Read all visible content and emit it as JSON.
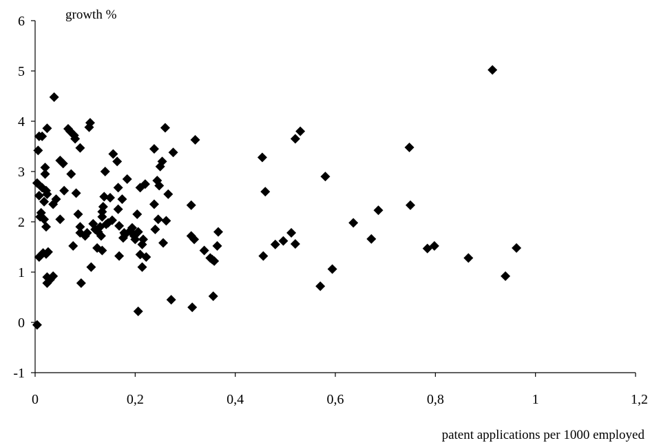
{
  "chart_data": {
    "type": "scatter",
    "ylabel": "growth %",
    "xlabel": "patent applications per 1000 employed",
    "xlim": [
      0,
      1.2
    ],
    "ylim": [
      -1,
      6
    ],
    "x_ticks": [
      "0",
      "0,2",
      "0,4",
      "0,6",
      "0,8",
      "1",
      "1,2"
    ],
    "y_ticks": [
      "-1",
      "0",
      "1",
      "2",
      "3",
      "4",
      "5",
      "6"
    ],
    "grid": false,
    "legend": "none",
    "marker": "diamond",
    "marker_color": "#000000",
    "points": [
      [
        0.004,
        -0.05
      ],
      [
        0.004,
        2.77
      ],
      [
        0.006,
        3.42
      ],
      [
        0.008,
        3.7
      ],
      [
        0.008,
        2.52
      ],
      [
        0.008,
        1.3
      ],
      [
        0.01,
        2.1
      ],
      [
        0.012,
        2.18
      ],
      [
        0.014,
        3.7
      ],
      [
        0.014,
        2.68
      ],
      [
        0.016,
        1.38
      ],
      [
        0.018,
        2.05
      ],
      [
        0.018,
        2.4
      ],
      [
        0.02,
        3.08
      ],
      [
        0.02,
        2.95
      ],
      [
        0.022,
        2.62
      ],
      [
        0.022,
        1.9
      ],
      [
        0.022,
        1.36
      ],
      [
        0.024,
        3.86
      ],
      [
        0.024,
        2.55
      ],
      [
        0.024,
        0.9
      ],
      [
        0.024,
        0.78
      ],
      [
        0.026,
        1.4
      ],
      [
        0.03,
        0.85
      ],
      [
        0.036,
        0.92
      ],
      [
        0.036,
        2.35
      ],
      [
        0.038,
        4.48
      ],
      [
        0.042,
        2.45
      ],
      [
        0.05,
        2.05
      ],
      [
        0.05,
        3.22
      ],
      [
        0.056,
        3.16
      ],
      [
        0.058,
        2.62
      ],
      [
        0.066,
        3.85
      ],
      [
        0.07,
        3.8
      ],
      [
        0.072,
        2.95
      ],
      [
        0.076,
        1.52
      ],
      [
        0.078,
        3.72
      ],
      [
        0.08,
        3.65
      ],
      [
        0.082,
        2.57
      ],
      [
        0.086,
        2.15
      ],
      [
        0.09,
        3.47
      ],
      [
        0.09,
        1.9
      ],
      [
        0.09,
        1.78
      ],
      [
        0.092,
        0.78
      ],
      [
        0.1,
        1.72
      ],
      [
        0.104,
        1.78
      ],
      [
        0.108,
        3.88
      ],
      [
        0.11,
        3.97
      ],
      [
        0.112,
        1.1
      ],
      [
        0.116,
        1.96
      ],
      [
        0.12,
        1.85
      ],
      [
        0.124,
        1.48
      ],
      [
        0.126,
        1.8
      ],
      [
        0.13,
        1.9
      ],
      [
        0.132,
        1.72
      ],
      [
        0.134,
        2.2
      ],
      [
        0.134,
        2.1
      ],
      [
        0.134,
        1.43
      ],
      [
        0.136,
        2.3
      ],
      [
        0.138,
        2.5
      ],
      [
        0.14,
        3.0
      ],
      [
        0.142,
        1.95
      ],
      [
        0.146,
        1.98
      ],
      [
        0.15,
        2.48
      ],
      [
        0.154,
        2.03
      ],
      [
        0.156,
        3.35
      ],
      [
        0.164,
        3.2
      ],
      [
        0.166,
        2.68
      ],
      [
        0.166,
        2.25
      ],
      [
        0.168,
        1.92
      ],
      [
        0.168,
        1.32
      ],
      [
        0.174,
        2.45
      ],
      [
        0.176,
        1.68
      ],
      [
        0.178,
        1.78
      ],
      [
        0.18,
        1.75
      ],
      [
        0.184,
        2.85
      ],
      [
        0.19,
        1.82
      ],
      [
        0.194,
        1.88
      ],
      [
        0.198,
        1.72
      ],
      [
        0.2,
        1.65
      ],
      [
        0.204,
        2.15
      ],
      [
        0.206,
        1.8
      ],
      [
        0.206,
        0.22
      ],
      [
        0.21,
        2.68
      ],
      [
        0.21,
        1.35
      ],
      [
        0.214,
        1.55
      ],
      [
        0.214,
        1.1
      ],
      [
        0.216,
        1.65
      ],
      [
        0.22,
        2.75
      ],
      [
        0.222,
        1.3
      ],
      [
        0.238,
        3.45
      ],
      [
        0.238,
        2.35
      ],
      [
        0.24,
        1.85
      ],
      [
        0.244,
        2.82
      ],
      [
        0.246,
        2.05
      ],
      [
        0.248,
        2.72
      ],
      [
        0.25,
        3.1
      ],
      [
        0.254,
        3.2
      ],
      [
        0.256,
        1.58
      ],
      [
        0.26,
        3.87
      ],
      [
        0.262,
        2.02
      ],
      [
        0.266,
        2.55
      ],
      [
        0.272,
        0.45
      ],
      [
        0.276,
        3.38
      ],
      [
        0.312,
        2.33
      ],
      [
        0.312,
        1.72
      ],
      [
        0.314,
        0.3
      ],
      [
        0.318,
        1.65
      ],
      [
        0.32,
        3.63
      ],
      [
        0.338,
        1.43
      ],
      [
        0.35,
        1.28
      ],
      [
        0.354,
        1.25
      ],
      [
        0.356,
        0.52
      ],
      [
        0.358,
        1.22
      ],
      [
        0.364,
        1.52
      ],
      [
        0.366,
        1.8
      ],
      [
        0.454,
        3.28
      ],
      [
        0.456,
        1.32
      ],
      [
        0.46,
        2.6
      ],
      [
        0.48,
        1.55
      ],
      [
        0.496,
        1.62
      ],
      [
        0.512,
        1.78
      ],
      [
        0.52,
        3.65
      ],
      [
        0.52,
        1.56
      ],
      [
        0.53,
        3.8
      ],
      [
        0.57,
        0.72
      ],
      [
        0.58,
        2.9
      ],
      [
        0.594,
        1.06
      ],
      [
        0.636,
        1.98
      ],
      [
        0.672,
        1.66
      ],
      [
        0.686,
        2.23
      ],
      [
        0.748,
        3.48
      ],
      [
        0.75,
        2.33
      ],
      [
        0.784,
        1.47
      ],
      [
        0.798,
        1.52
      ],
      [
        0.866,
        1.28
      ],
      [
        0.914,
        5.02
      ],
      [
        0.94,
        0.92
      ],
      [
        0.962,
        1.48
      ]
    ]
  }
}
